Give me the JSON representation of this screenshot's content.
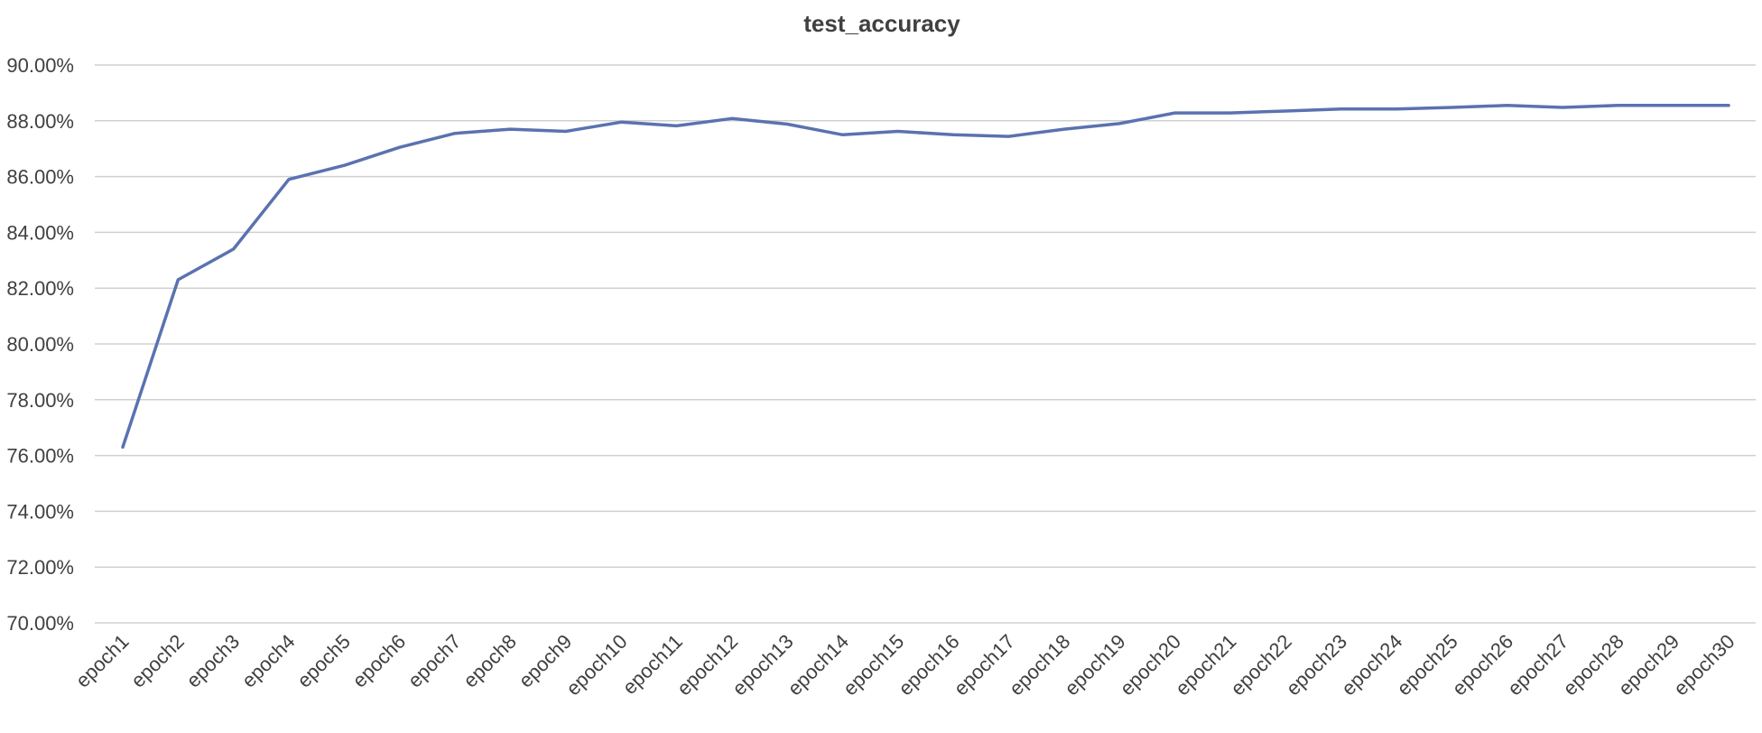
{
  "chart_data": {
    "type": "line",
    "title": "test_accuracy",
    "xlabel": "",
    "ylabel": "",
    "categories": [
      "epoch1",
      "epoch2",
      "epoch3",
      "epoch4",
      "epoch5",
      "epoch6",
      "epoch7",
      "epoch8",
      "epoch9",
      "epoch10",
      "epoch11",
      "epoch12",
      "epoch13",
      "epoch14",
      "epoch15",
      "epoch16",
      "epoch17",
      "epoch18",
      "epoch19",
      "epoch20",
      "epoch21",
      "epoch22",
      "epoch23",
      "epoch24",
      "epoch25",
      "epoch26",
      "epoch27",
      "epoch28",
      "epoch29",
      "epoch30"
    ],
    "series": [
      {
        "values": [
          76.3,
          82.3,
          83.4,
          85.9,
          86.4,
          87.05,
          87.55,
          87.7,
          87.62,
          87.95,
          87.82,
          88.08,
          87.88,
          87.5,
          87.62,
          87.5,
          87.44,
          87.7,
          87.9,
          88.28,
          88.28,
          88.35,
          88.42,
          88.42,
          88.48,
          88.55,
          88.48,
          88.55,
          88.55,
          88.55
        ],
        "color": "#5B72B0"
      }
    ],
    "y_tick_labels": [
      "70.00%",
      "72.00%",
      "74.00%",
      "76.00%",
      "78.00%",
      "80.00%",
      "82.00%",
      "84.00%",
      "86.00%",
      "88.00%",
      "90.00%"
    ],
    "ylim": [
      70,
      90
    ],
    "y_step": 2,
    "y_format": "percent",
    "grid": true,
    "legend": "none",
    "colors": {
      "gridline": "#d0d0d0",
      "text": "#404040",
      "background": "#ffffff"
    }
  }
}
